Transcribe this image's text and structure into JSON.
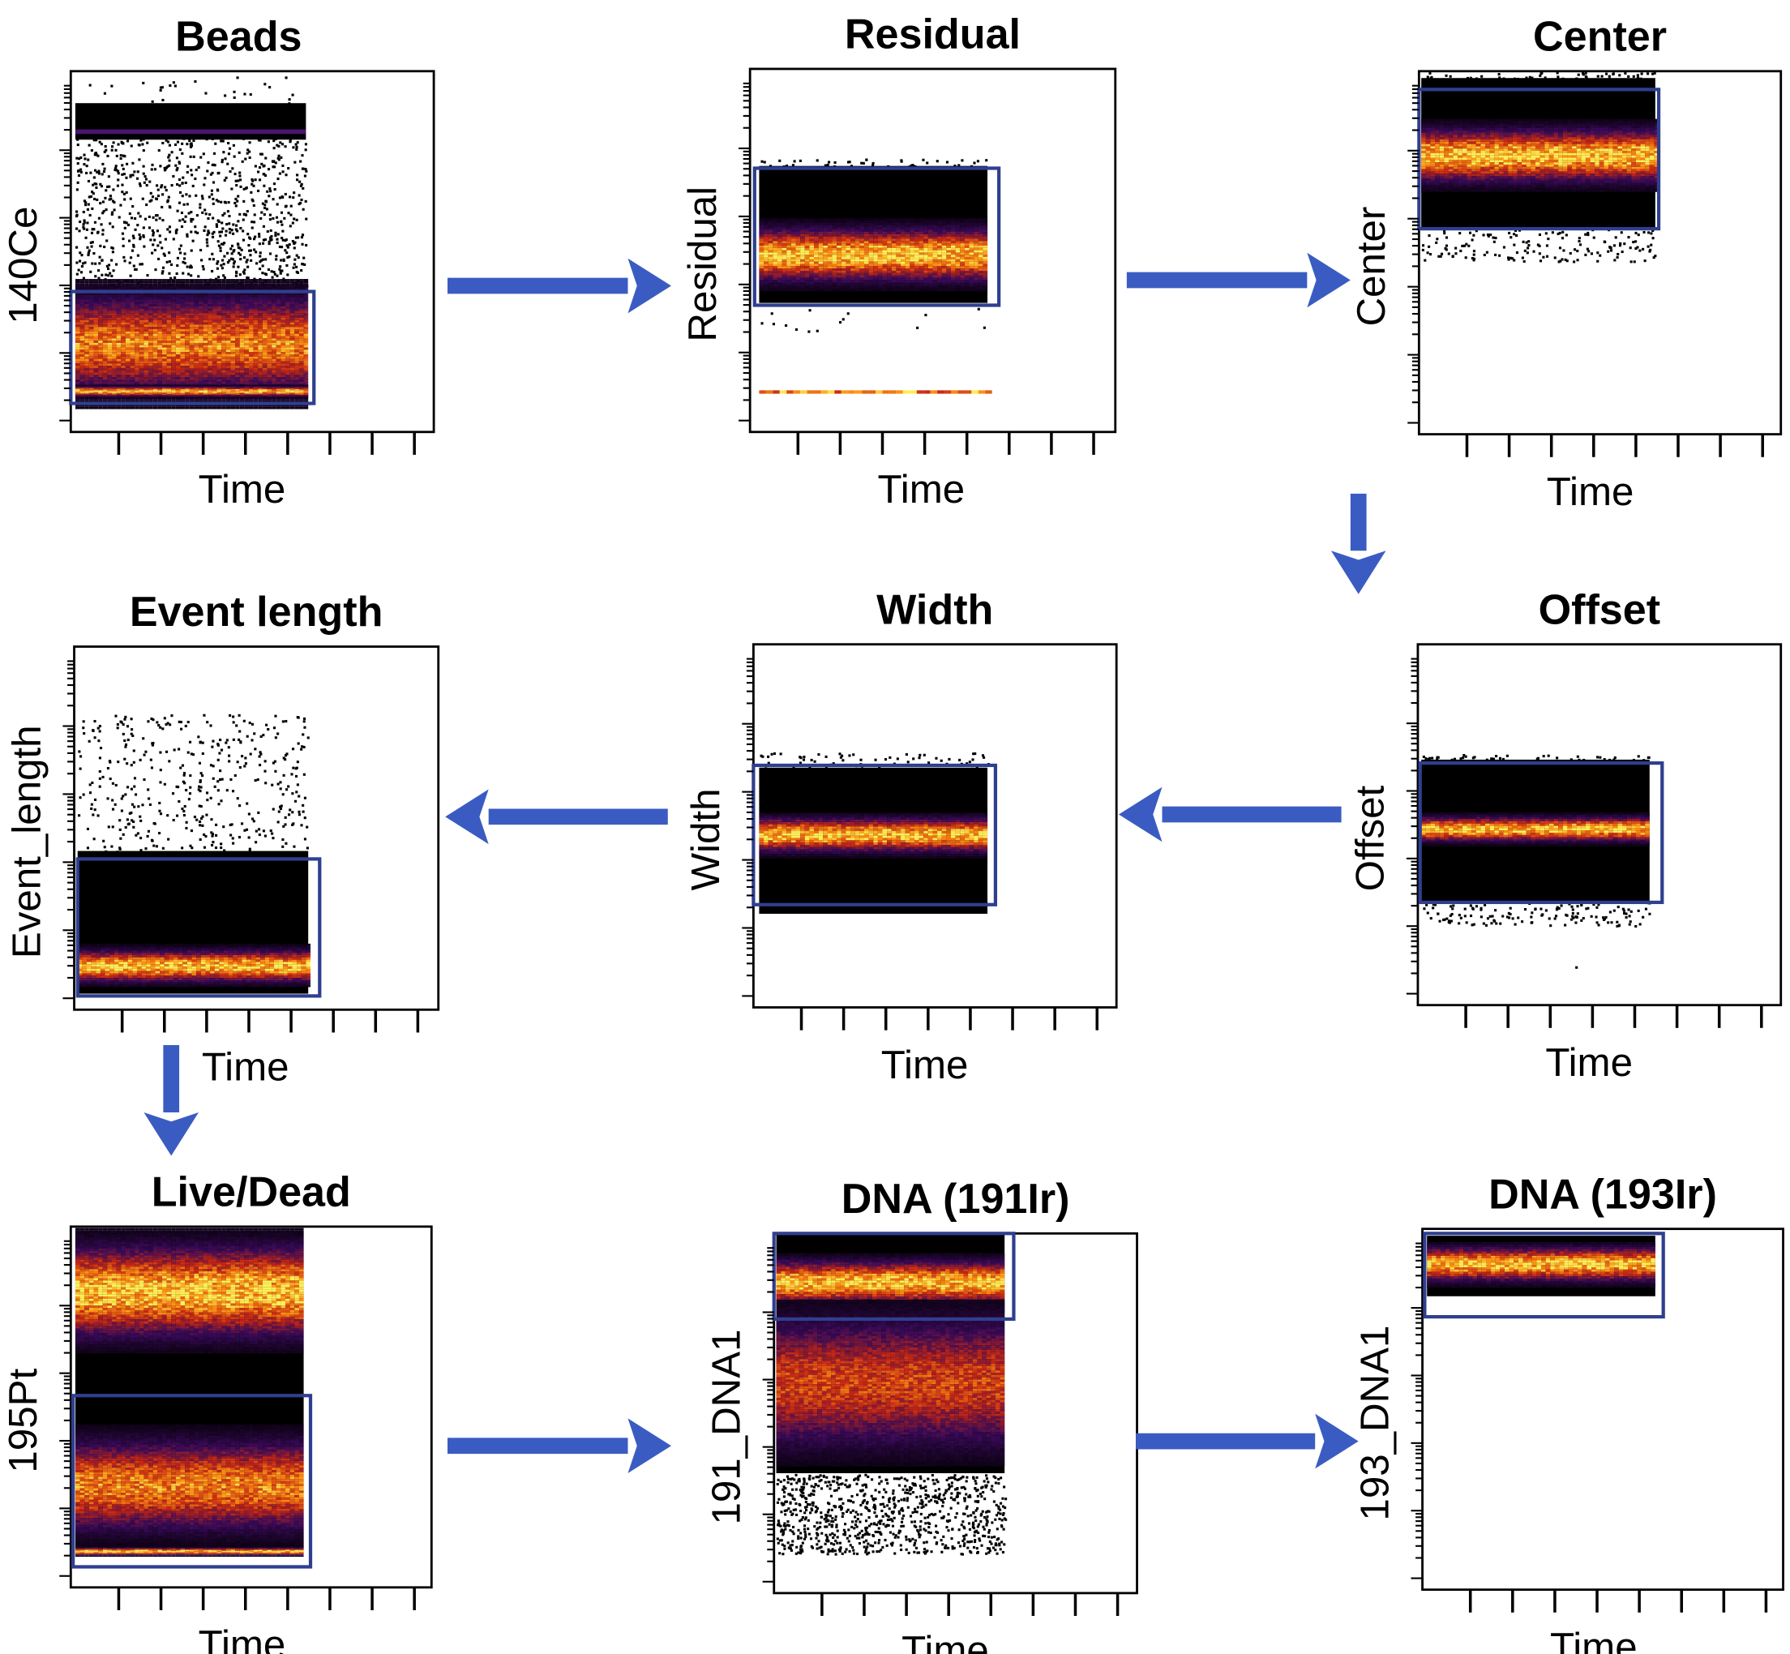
{
  "colors": {
    "arrow": "#3a5cc2",
    "gate": "#2f3f8f",
    "density_low": "#000000",
    "density_mid": "#3a0a5a",
    "density_high": "#e0401a",
    "density_peak": "#ffef50"
  },
  "chart_data": [
    {
      "type": "scatter",
      "title": "Beads",
      "xlabel": "Time",
      "ylabel": "140Ce",
      "density_colored": true
    },
    {
      "type": "scatter",
      "title": "Residual",
      "xlabel": "Time",
      "ylabel": "Residual",
      "density_colored": true
    },
    {
      "type": "scatter",
      "title": "Center",
      "xlabel": "Time",
      "ylabel": "Center",
      "density_colored": true
    },
    {
      "type": "scatter",
      "title": "Offset",
      "xlabel": "Time",
      "ylabel": "Offset",
      "density_colored": true
    },
    {
      "type": "scatter",
      "title": "Width",
      "xlabel": "Time",
      "ylabel": "Width",
      "density_colored": true
    },
    {
      "type": "scatter",
      "title": "Event length",
      "xlabel": "Time",
      "ylabel": "Event_length",
      "density_colored": true
    },
    {
      "type": "scatter",
      "title": "Live/Dead",
      "xlabel": "Time",
      "ylabel": "195Pt",
      "density_colored": true
    },
    {
      "type": "scatter",
      "title": "DNA (191Ir)",
      "xlabel": "Time",
      "ylabel": "191_DNA1",
      "density_colored": true
    },
    {
      "type": "scatter",
      "title": "DNA (193Ir)",
      "xlabel": "Time",
      "ylabel": "193_DNA1",
      "density_colored": true
    }
  ],
  "flow": [
    "Beads",
    "Residual",
    "Center",
    "Offset",
    "Width",
    "Event length",
    "Live/Dead",
    "DNA (191Ir)",
    "DNA (193Ir)"
  ]
}
